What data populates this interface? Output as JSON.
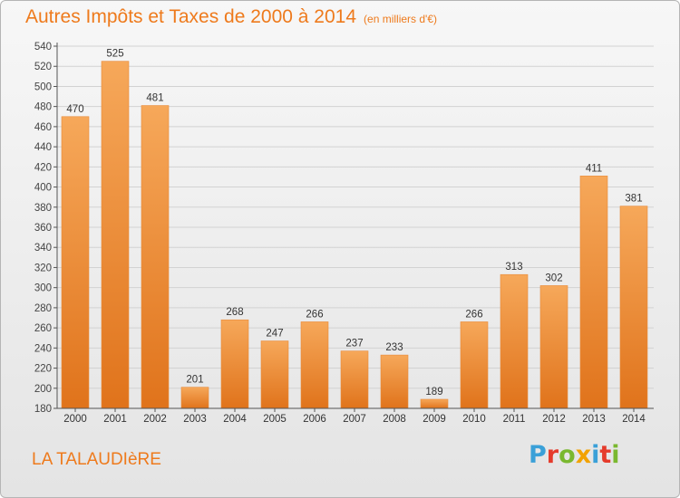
{
  "chart_data": {
    "type": "bar",
    "title": "Autres Impôts et Taxes de 2000 à 2014",
    "subtitle": "(en milliers d'€)",
    "categories": [
      "2000",
      "2001",
      "2002",
      "2003",
      "2004",
      "2005",
      "2006",
      "2007",
      "2008",
      "2009",
      "2010",
      "2011",
      "2012",
      "2013",
      "2014"
    ],
    "values": [
      470,
      525,
      481,
      201,
      268,
      247,
      266,
      237,
      233,
      189,
      266,
      313,
      302,
      411,
      381
    ],
    "ylim": [
      180,
      540
    ],
    "ytick_step": 20,
    "grid": true,
    "bar_color": "#ee8a30"
  },
  "footer": {
    "town": "LA TALAUDIèRE",
    "logo_text": "Proxiti",
    "logo_colors": [
      "#3aa0d8",
      "#e53b2c",
      "#7ab82f",
      "#f2a200",
      "#3aa0d8",
      "#e53b2c",
      "#7ab82f"
    ]
  }
}
